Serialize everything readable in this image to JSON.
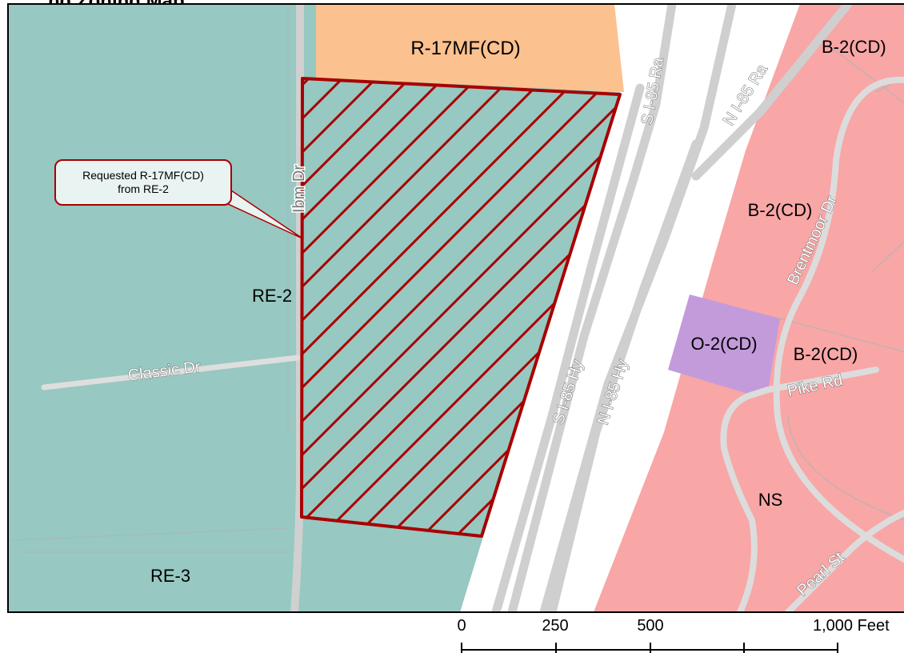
{
  "page": {
    "title_fragment": "ng Zoning Map",
    "callout": {
      "line1": "Requested R-17MF(CD)",
      "line2": "from RE-2"
    }
  },
  "zones": {
    "r17mf": "R-17MF(CD)",
    "re2": "RE-2",
    "re3": "RE-3",
    "b2_top": "B-2(CD)",
    "b2_mid": "B-2(CD)",
    "b2_low": "B-2(CD)",
    "o2": "O-2(CD)",
    "ns": "NS"
  },
  "roads": {
    "ibm": "Ibm Dr",
    "classic": "Classic Dr",
    "s_ramp": "S I-85 Ra",
    "n_ramp": "N I-85 Ra",
    "s_hwy": "S I-85 Hy",
    "n_hwy": "N I-85 Hy",
    "brentmoor": "Brentmoor Dr",
    "pike": "Pike Rd",
    "pearl": "Pearl St"
  },
  "scale_bar": {
    "labels": [
      "0",
      "250",
      "500",
      "1,000 Feet"
    ]
  },
  "colors": {
    "residential_estate": "#97c8c1",
    "multifamily": "#fbc18f",
    "business": "#f8a6a6",
    "office": "#c39bdb",
    "subject_outline": "#a80000",
    "road": "#d3d3d3"
  }
}
